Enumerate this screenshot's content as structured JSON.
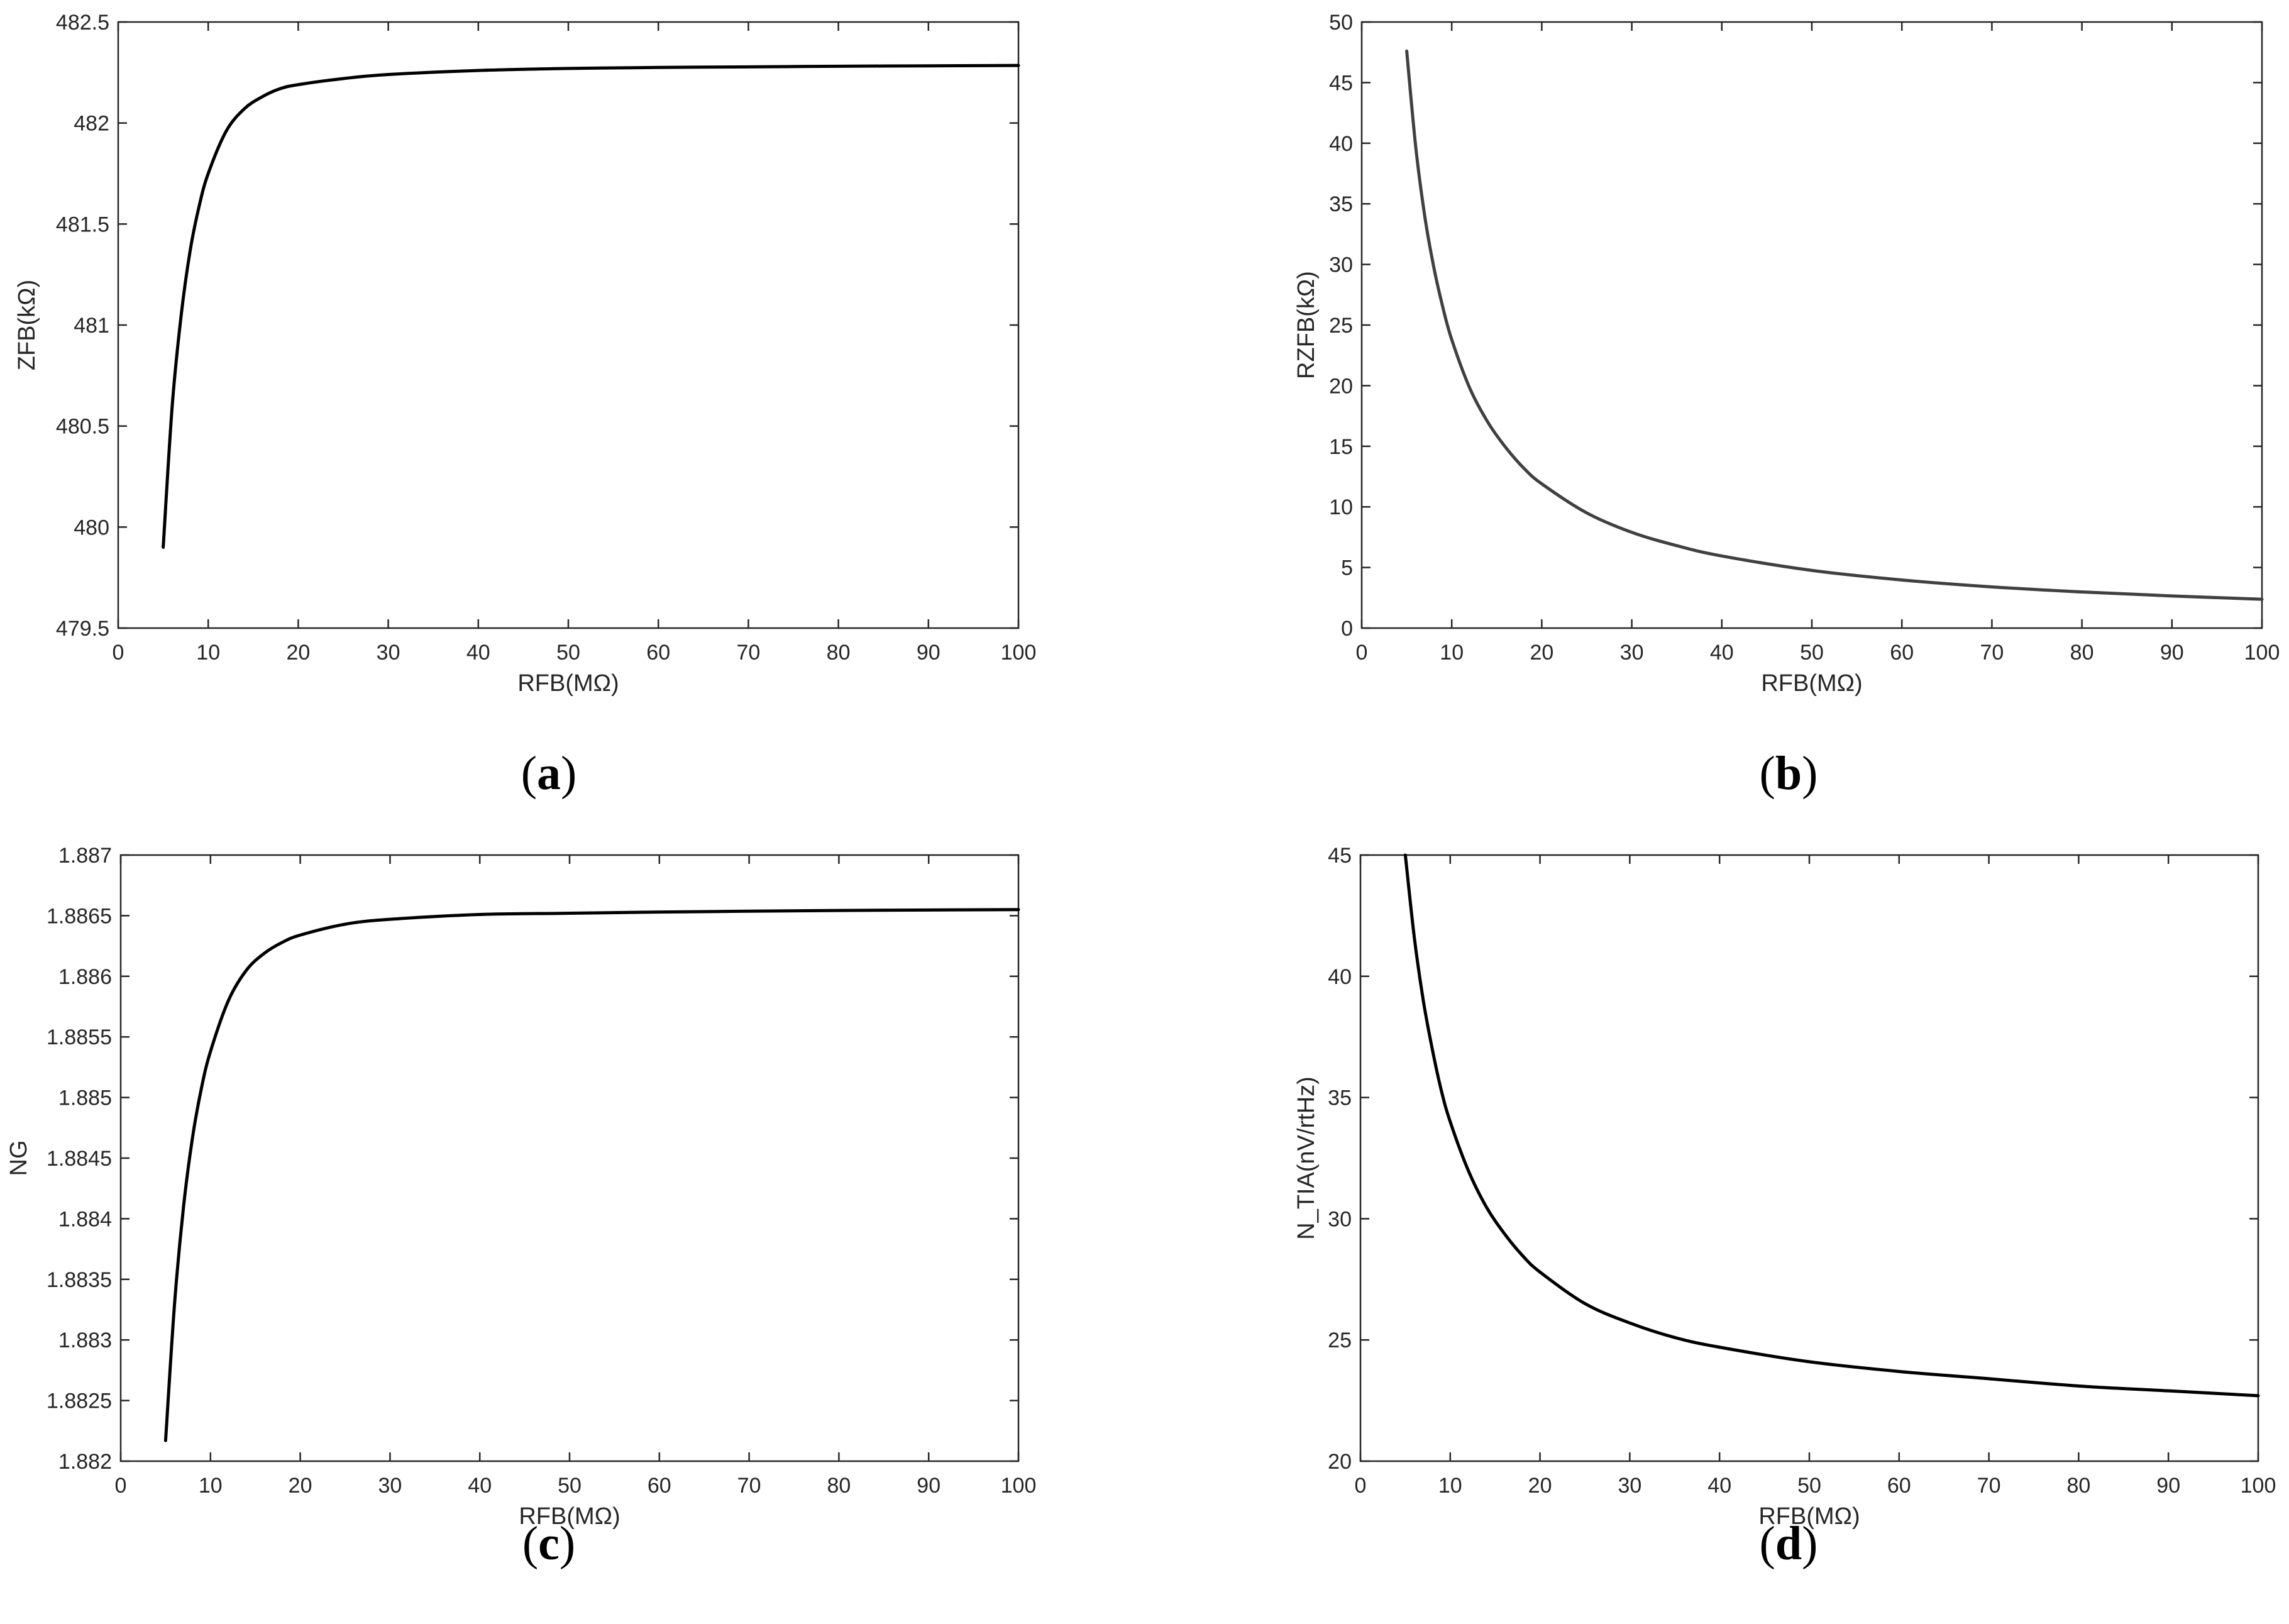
{
  "chart_data": [
    {
      "type": "line",
      "panel": "a",
      "caption": "(a)",
      "caption_letter": "a",
      "xlabel": "RFB(MΩ)",
      "ylabel": "ZFB(kΩ)",
      "xlim": [
        0,
        100
      ],
      "ylim": [
        479.5,
        482.5
      ],
      "xticks": [
        0,
        10,
        20,
        30,
        40,
        50,
        60,
        70,
        80,
        90,
        100
      ],
      "yticks": [
        479.5,
        480,
        480.5,
        481,
        481.5,
        482,
        482.5
      ],
      "ytick_labels": [
        "479.5",
        "480",
        "480.5",
        "481",
        "481.5",
        "482",
        "482.5"
      ],
      "color": "#000000",
      "series": [
        {
          "x": [
            5,
            6,
            7,
            8,
            9,
            10,
            12,
            14,
            16,
            18,
            20,
            25,
            30,
            40,
            50,
            60,
            70,
            80,
            90,
            100
          ],
          "y": [
            479.9,
            480.6,
            481.05,
            481.37,
            481.59,
            481.75,
            481.96,
            482.07,
            482.13,
            482.17,
            482.19,
            482.22,
            482.24,
            482.26,
            482.27,
            482.275,
            482.278,
            482.281,
            482.283,
            482.285
          ]
        }
      ]
    },
    {
      "type": "line",
      "panel": "b",
      "caption": "(b)",
      "caption_letter": "b",
      "xlabel": "RFB(MΩ)",
      "ylabel": "RZFB(kΩ)",
      "xlim": [
        0,
        100
      ],
      "ylim": [
        0,
        50
      ],
      "xticks": [
        0,
        10,
        20,
        30,
        40,
        50,
        60,
        70,
        80,
        90,
        100
      ],
      "yticks": [
        0,
        5,
        10,
        15,
        20,
        25,
        30,
        35,
        40,
        45,
        50
      ],
      "ytick_labels": [
        "0",
        "5",
        "10",
        "15",
        "20",
        "25",
        "30",
        "35",
        "40",
        "45",
        "50"
      ],
      "color": "#404040",
      "series": [
        {
          "x": [
            5,
            6,
            7,
            8,
            9,
            10,
            12,
            14,
            16,
            18,
            20,
            25,
            30,
            35,
            40,
            50,
            60,
            70,
            80,
            90,
            100
          ],
          "y": [
            47.6,
            39.7,
            34.0,
            29.8,
            26.5,
            23.8,
            19.8,
            17.0,
            14.9,
            13.2,
            11.9,
            9.5,
            7.9,
            6.8,
            5.95,
            4.76,
            3.97,
            3.4,
            2.98,
            2.65,
            2.38
          ]
        }
      ]
    },
    {
      "type": "line",
      "panel": "c",
      "caption": "(c)",
      "caption_letter": "c",
      "xlabel": "RFB(MΩ)",
      "ylabel": "NG",
      "xlim": [
        0,
        100
      ],
      "ylim": [
        1.882,
        1.887
      ],
      "xticks": [
        0,
        10,
        20,
        30,
        40,
        50,
        60,
        70,
        80,
        90,
        100
      ],
      "yticks": [
        1.882,
        1.8825,
        1.883,
        1.8835,
        1.884,
        1.8845,
        1.885,
        1.8855,
        1.886,
        1.8865,
        1.887
      ],
      "ytick_labels": [
        "1.882",
        "1.8825",
        "1.883",
        "1.8835",
        "1.884",
        "1.8845",
        "1.885",
        "1.8855",
        "1.886",
        "1.8865",
        "1.887"
      ],
      "color": "#000000",
      "series": [
        {
          "x": [
            5,
            6,
            7,
            8,
            9,
            10,
            12,
            14,
            16,
            18,
            20,
            25,
            30,
            40,
            50,
            60,
            70,
            80,
            90,
            100
          ],
          "y": [
            1.88217,
            1.8833,
            1.8841,
            1.88467,
            1.88508,
            1.88538,
            1.8858,
            1.88605,
            1.88619,
            1.88628,
            1.88634,
            1.88643,
            1.88647,
            1.88651,
            1.88652,
            1.88653,
            1.886537,
            1.886543,
            1.886547,
            1.88655
          ]
        }
      ]
    },
    {
      "type": "line",
      "panel": "d",
      "caption": "(d)",
      "caption_letter": "d",
      "xlabel": "RFB(MΩ)",
      "ylabel": "N_TIA(nV/rtHz)",
      "xlim": [
        0,
        100
      ],
      "ylim": [
        20,
        45
      ],
      "xticks": [
        0,
        10,
        20,
        30,
        40,
        50,
        60,
        70,
        80,
        90,
        100
      ],
      "yticks": [
        20,
        25,
        30,
        35,
        40,
        45
      ],
      "ytick_labels": [
        "20",
        "25",
        "30",
        "35",
        "40",
        "45"
      ],
      "color": "#000000",
      "series": [
        {
          "x": [
            5,
            6,
            7,
            8,
            9,
            10,
            12,
            14,
            16,
            18,
            20,
            25,
            30,
            35,
            40,
            50,
            60,
            70,
            80,
            90,
            100
          ],
          "y": [
            45.0,
            41.6,
            39.0,
            37.0,
            35.3,
            34.0,
            32.0,
            30.5,
            29.4,
            28.5,
            27.8,
            26.5,
            25.7,
            25.1,
            24.7,
            24.1,
            23.7,
            23.4,
            23.1,
            22.9,
            22.7
          ]
        }
      ]
    }
  ]
}
